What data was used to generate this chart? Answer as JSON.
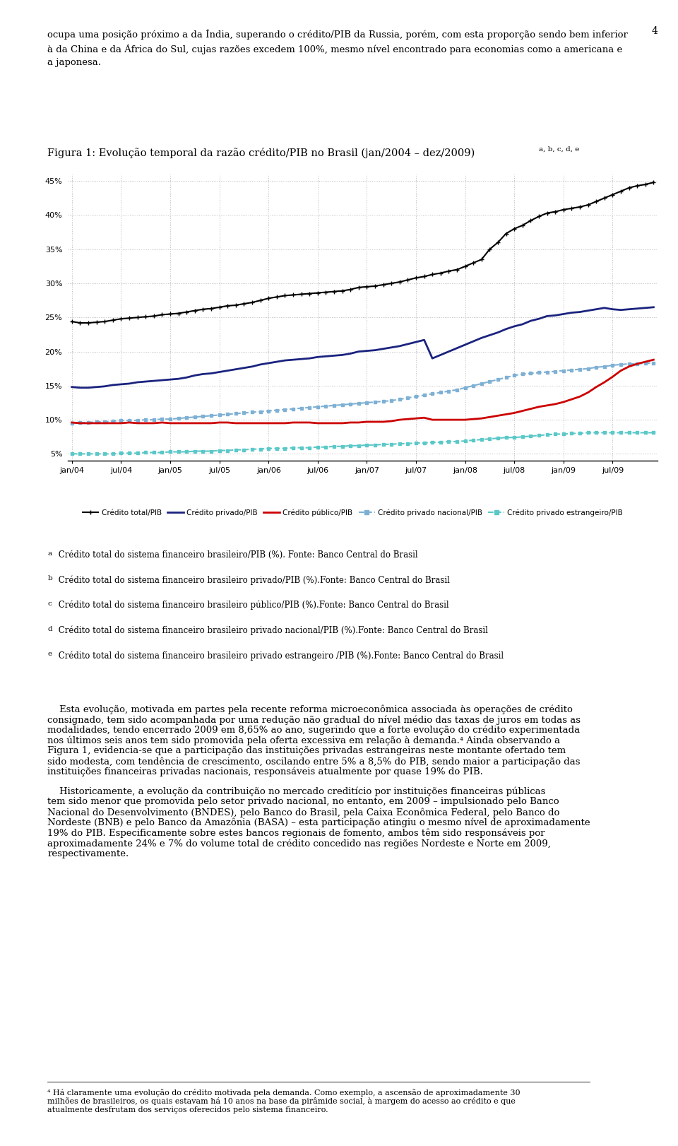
{
  "title": "Figura 1: Evolução temporal da razão crédito/PIB no Brasil (jan/2004 – dez/2009)",
  "title_superscript": " a, b, c, d, e",
  "background_color": "#ffffff",
  "plot_bg_color": "#ffffff",
  "grid_color": "#aaaaaa",
  "ylim": [
    0.04,
    0.46
  ],
  "yticks": [
    0.05,
    0.1,
    0.15,
    0.2,
    0.25,
    0.3,
    0.35,
    0.4,
    0.45
  ],
  "xtick_labels": [
    "jan/04",
    "jul/04",
    "jan/05",
    "jul/05",
    "jan/06",
    "jul/06",
    "jan/07",
    "jul/07",
    "jan/08",
    "jul/08",
    "jan/09",
    "jul/09"
  ],
  "series_total": [
    0.244,
    0.242,
    0.242,
    0.243,
    0.244,
    0.246,
    0.248,
    0.249,
    0.25,
    0.251,
    0.252,
    0.254,
    0.255,
    0.256,
    0.258,
    0.26,
    0.262,
    0.263,
    0.265,
    0.267,
    0.268,
    0.27,
    0.272,
    0.275,
    0.278,
    0.28,
    0.282,
    0.283,
    0.284,
    0.285,
    0.286,
    0.287,
    0.288,
    0.289,
    0.291,
    0.294,
    0.295,
    0.296,
    0.298,
    0.3,
    0.302,
    0.305,
    0.308,
    0.31,
    0.313,
    0.315,
    0.318,
    0.32,
    0.325,
    0.33,
    0.335,
    0.35,
    0.36,
    0.373,
    0.38,
    0.385,
    0.392,
    0.398,
    0.403,
    0.405,
    0.408,
    0.41,
    0.412,
    0.415,
    0.42,
    0.425,
    0.43,
    0.435,
    0.44,
    0.443,
    0.445,
    0.448
  ],
  "series_privado": [
    0.148,
    0.147,
    0.147,
    0.148,
    0.149,
    0.151,
    0.152,
    0.153,
    0.155,
    0.156,
    0.157,
    0.158,
    0.159,
    0.16,
    0.162,
    0.165,
    0.167,
    0.168,
    0.17,
    0.172,
    0.174,
    0.176,
    0.178,
    0.181,
    0.183,
    0.185,
    0.187,
    0.188,
    0.189,
    0.19,
    0.192,
    0.193,
    0.194,
    0.195,
    0.197,
    0.2,
    0.201,
    0.202,
    0.204,
    0.206,
    0.208,
    0.211,
    0.214,
    0.217,
    0.19,
    0.195,
    0.2,
    0.205,
    0.21,
    0.215,
    0.22,
    0.224,
    0.228,
    0.233,
    0.237,
    0.24,
    0.245,
    0.248,
    0.252,
    0.253,
    0.255,
    0.257,
    0.258,
    0.26,
    0.262,
    0.264,
    0.262,
    0.261,
    0.262,
    0.263,
    0.264,
    0.265
  ],
  "series_publico": [
    0.096,
    0.095,
    0.095,
    0.095,
    0.095,
    0.095,
    0.095,
    0.096,
    0.095,
    0.095,
    0.095,
    0.096,
    0.095,
    0.095,
    0.095,
    0.095,
    0.095,
    0.095,
    0.096,
    0.096,
    0.095,
    0.095,
    0.095,
    0.095,
    0.095,
    0.095,
    0.095,
    0.096,
    0.096,
    0.096,
    0.095,
    0.095,
    0.095,
    0.095,
    0.096,
    0.096,
    0.097,
    0.097,
    0.097,
    0.098,
    0.1,
    0.101,
    0.102,
    0.103,
    0.1,
    0.1,
    0.1,
    0.1,
    0.1,
    0.101,
    0.102,
    0.104,
    0.106,
    0.108,
    0.11,
    0.113,
    0.116,
    0.119,
    0.121,
    0.123,
    0.126,
    0.13,
    0.134,
    0.14,
    0.148,
    0.155,
    0.163,
    0.172,
    0.178,
    0.182,
    0.185,
    0.188
  ],
  "series_priv_nacional": [
    0.095,
    0.096,
    0.096,
    0.097,
    0.097,
    0.098,
    0.099,
    0.099,
    0.099,
    0.1,
    0.1,
    0.101,
    0.101,
    0.102,
    0.103,
    0.104,
    0.105,
    0.106,
    0.107,
    0.108,
    0.109,
    0.11,
    0.111,
    0.112,
    0.113,
    0.114,
    0.115,
    0.116,
    0.117,
    0.118,
    0.119,
    0.12,
    0.121,
    0.122,
    0.123,
    0.124,
    0.125,
    0.126,
    0.127,
    0.128,
    0.13,
    0.132,
    0.134,
    0.136,
    0.138,
    0.14,
    0.142,
    0.144,
    0.147,
    0.15,
    0.153,
    0.156,
    0.159,
    0.162,
    0.165,
    0.167,
    0.168,
    0.169,
    0.17,
    0.171,
    0.172,
    0.173,
    0.174,
    0.175,
    0.177,
    0.178,
    0.18,
    0.181,
    0.182,
    0.182,
    0.183,
    0.183
  ],
  "series_priv_estrangeiro": [
    0.05,
    0.05,
    0.05,
    0.05,
    0.05,
    0.05,
    0.051,
    0.051,
    0.051,
    0.052,
    0.052,
    0.052,
    0.053,
    0.053,
    0.053,
    0.054,
    0.054,
    0.054,
    0.055,
    0.055,
    0.056,
    0.056,
    0.057,
    0.057,
    0.058,
    0.058,
    0.058,
    0.059,
    0.059,
    0.059,
    0.06,
    0.06,
    0.061,
    0.061,
    0.062,
    0.062,
    0.063,
    0.063,
    0.064,
    0.064,
    0.065,
    0.065,
    0.066,
    0.066,
    0.067,
    0.067,
    0.068,
    0.068,
    0.069,
    0.07,
    0.071,
    0.072,
    0.073,
    0.074,
    0.074,
    0.075,
    0.076,
    0.077,
    0.078,
    0.079,
    0.079,
    0.08,
    0.08,
    0.081,
    0.081,
    0.081,
    0.081,
    0.081,
    0.081,
    0.081,
    0.081,
    0.081
  ],
  "footnote_labels": [
    "a",
    "b",
    "c",
    "d",
    "e"
  ],
  "footnote_texts": [
    " Crédito total do sistema financeiro brasileiro/PIB (%). Fonte: Banco Central do Brasil",
    " Crédito total do sistema financeiro brasileiro privado/PIB (%).Fonte: Banco Central do Brasil",
    " Crédito total do sistema financeiro brasileiro público/PIB (%).Fonte: Banco Central do Brasil",
    " Crédito total do sistema financeiro brasileiro privado nacional/PIB (%).Fonte: Banco Central do Brasil",
    " Crédito total do sistema financeiro brasileiro privado estrangeiro /PIB (%).Fonte: Banco Central do Brasil"
  ],
  "body_top": "ocupa uma posição próximo a da Índia, superando o crédito/PIB da Russia, porém, com esta proporção sendo bem inferior\nà da China e da África do Sul, cujas razões excedem 100%, mesmo nível encontrado para economias como a americana e\na japonesa.",
  "body_paragraph1": "    Esta evolução, motivada em partes pela recente reforma microeconômica associada às operações de crédito consignado, tem sido acompanhada por uma redução não gradual do nível médio das taxas de juros em todas as modalidades, tendo encerrado 2009 em 8,65% ao ano, sugerindo que a forte evolução do crédito experimentada nos últimos seis anos tem sido promovida pela oferta excessiva em relação à demanda.⁴ Ainda observando a Figura 1, evidencia-se que a participação das instituições privadas estrangeiras neste montante ofertado tem sido modesta, com tendência de crescimento, oscilando entre 5% a 8,5% do PIB, sendo maior a participação das instituições financeiras privadas nacionais, responsáveis atualmente por quase 19% do PIB.",
  "body_paragraph2": "    Historicamente, a evolução da contribuição no mercado creditício por instituições financeiras públicas tem sido menor que promovida pelo setor privado nacional, no entanto, em 2009 – impulsionado pelo Banco Nacional do Desenvolvimento (BNDES), pelo Banco do Brasil, pela Caixa Econômica Federal, pelo Banco do Nordeste (BNB) e pelo Banco da Amazônia (BASA) – esta participação atingiu o mesmo nível de aproximadamente 19% do PIB. Especificamente sobre estes bancos regionais de fomento, ambos têm sido responsáveis por aproximadamente 24% e 7% do volume total de crédito concedido nas regiões Nordeste e Norte em 2009, respectivamente.",
  "footnote_bottom": "⁴ Há claramente uma evolução do crédito motivada pela demanda. Como exemplo, a ascensão de aproximadamente 30 milhões de brasileiros, os quais estavam há 10 anos na base da pirâmide social, à margem do acesso ao crédito e que atualmente desfrutam dos serviços oferecidos pelo sistema financeiro."
}
